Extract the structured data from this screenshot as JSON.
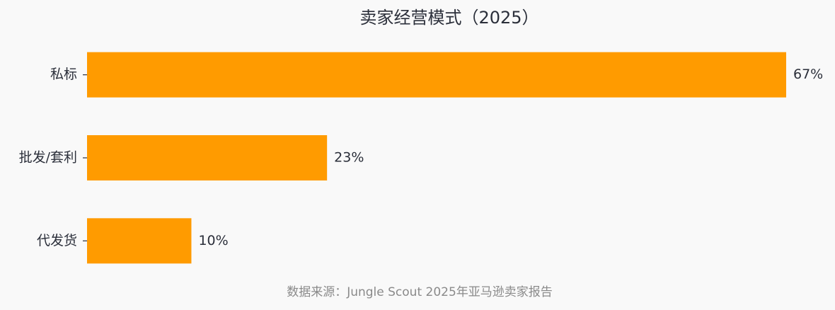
{
  "chart_data": {
    "type": "barh",
    "title": "卖家经营模式（2025）",
    "categories": [
      "私标",
      "批发/套利",
      "代发货"
    ],
    "values": [
      67,
      23,
      10
    ],
    "value_labels": [
      "67%",
      "23%",
      "10%"
    ],
    "color": "#ff9b00",
    "source": "数据来源：Jungle Scout 2025年亚马逊卖家报告"
  }
}
